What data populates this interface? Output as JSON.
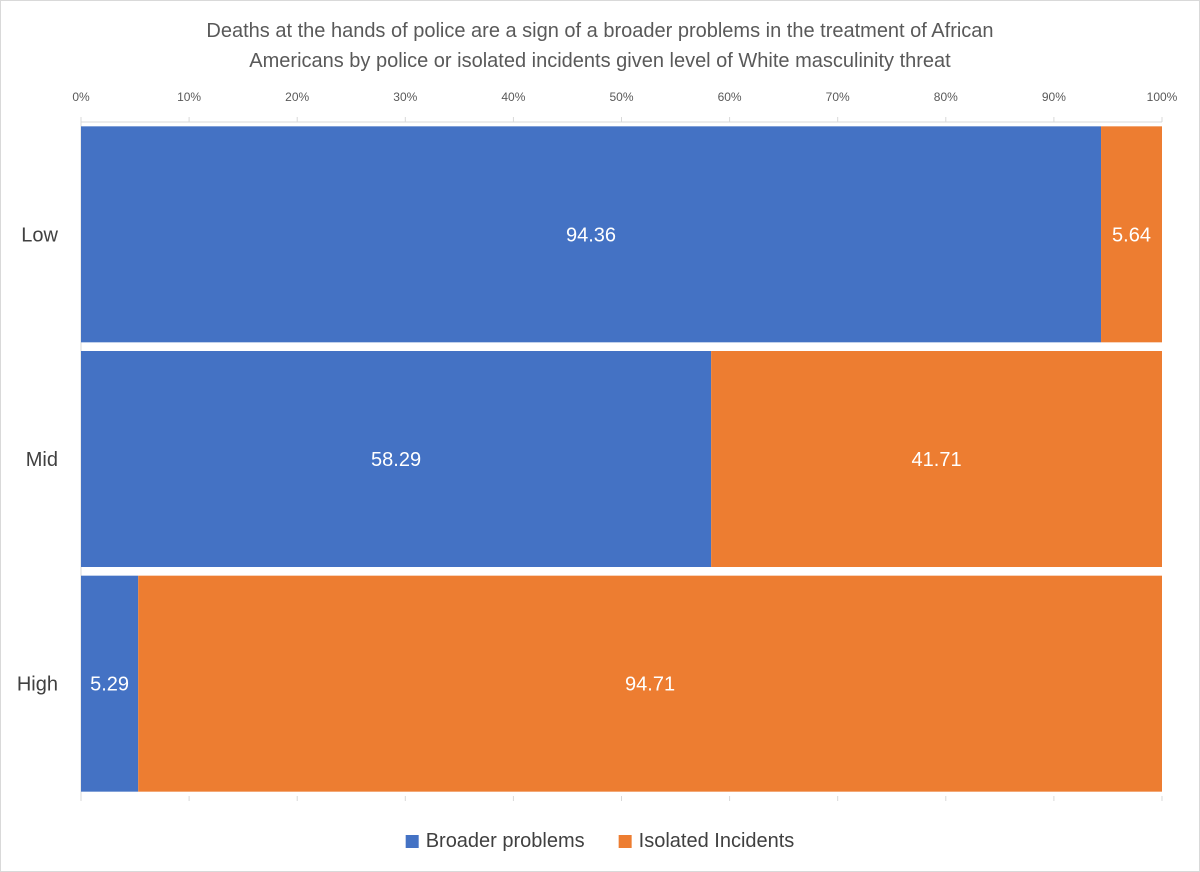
{
  "chart_data": {
    "type": "bar",
    "orientation": "horizontal",
    "stacked": "percent",
    "title_lines": [
      "Deaths at the hands of police are a sign of a broader problems in the treatment of African",
      "Americans by police or isolated incidents given level of White masculinity threat"
    ],
    "categories": [
      "Low",
      "Mid",
      "High"
    ],
    "series": [
      {
        "name": "Broader problems",
        "color": "#4472C4",
        "values": [
          94.36,
          58.29,
          5.29
        ]
      },
      {
        "name": "Isolated Incidents",
        "color": "#ED7D31",
        "values": [
          5.64,
          41.71,
          94.71
        ]
      }
    ],
    "xlim": [
      0,
      100
    ],
    "x_ticks": [
      "0%",
      "10%",
      "20%",
      "30%",
      "40%",
      "50%",
      "60%",
      "70%",
      "80%",
      "90%",
      "100%"
    ],
    "x_axis_position": "top",
    "legend_position": "bottom",
    "grid": false
  }
}
